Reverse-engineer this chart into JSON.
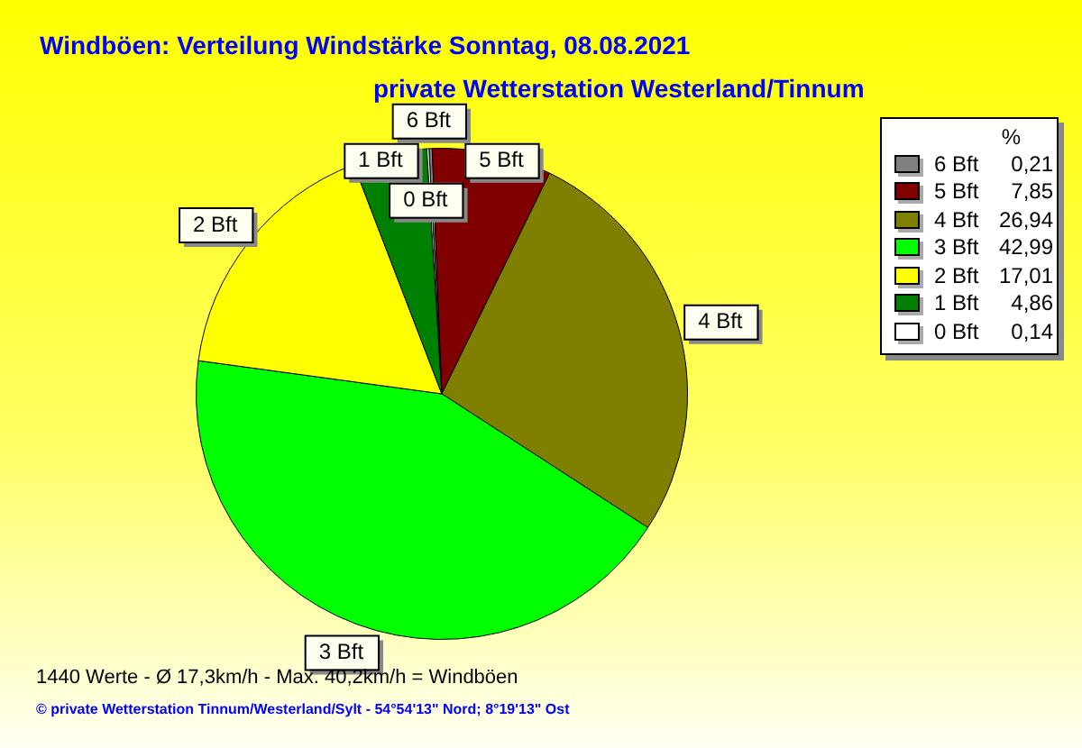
{
  "chart_data": {
    "type": "pie",
    "title": "Windböen: Verteilung Windstärke  Sonntag, 08.08.2021",
    "subtitle": "private Wetterstation Westerland/Tinnum",
    "legend_title": "%",
    "categories": [
      "6 Bft",
      "5 Bft",
      "4 Bft",
      "3 Bft",
      "2 Bft",
      "1 Bft",
      "0 Bft"
    ],
    "values": [
      0.21,
      7.85,
      26.94,
      42.99,
      17.01,
      4.86,
      0.14
    ],
    "value_labels": [
      "0,21",
      "7,85",
      "26,94",
      "42,99",
      "17,01",
      "4,86",
      "0,14"
    ],
    "colors": [
      "#808080",
      "#800000",
      "#808000",
      "#00ff00",
      "#ffff00",
      "#008000",
      "#ffffff"
    ],
    "legend": "top right",
    "annotations": [
      "1440 Werte   -   Ø 17,3km/h  -  Max. 40,2km/h = Windböen",
      "© private Wetterstation Tinnum/Westerland/Sylt  -  54°54'13\" Nord; 8°19'13\" Ost"
    ]
  }
}
